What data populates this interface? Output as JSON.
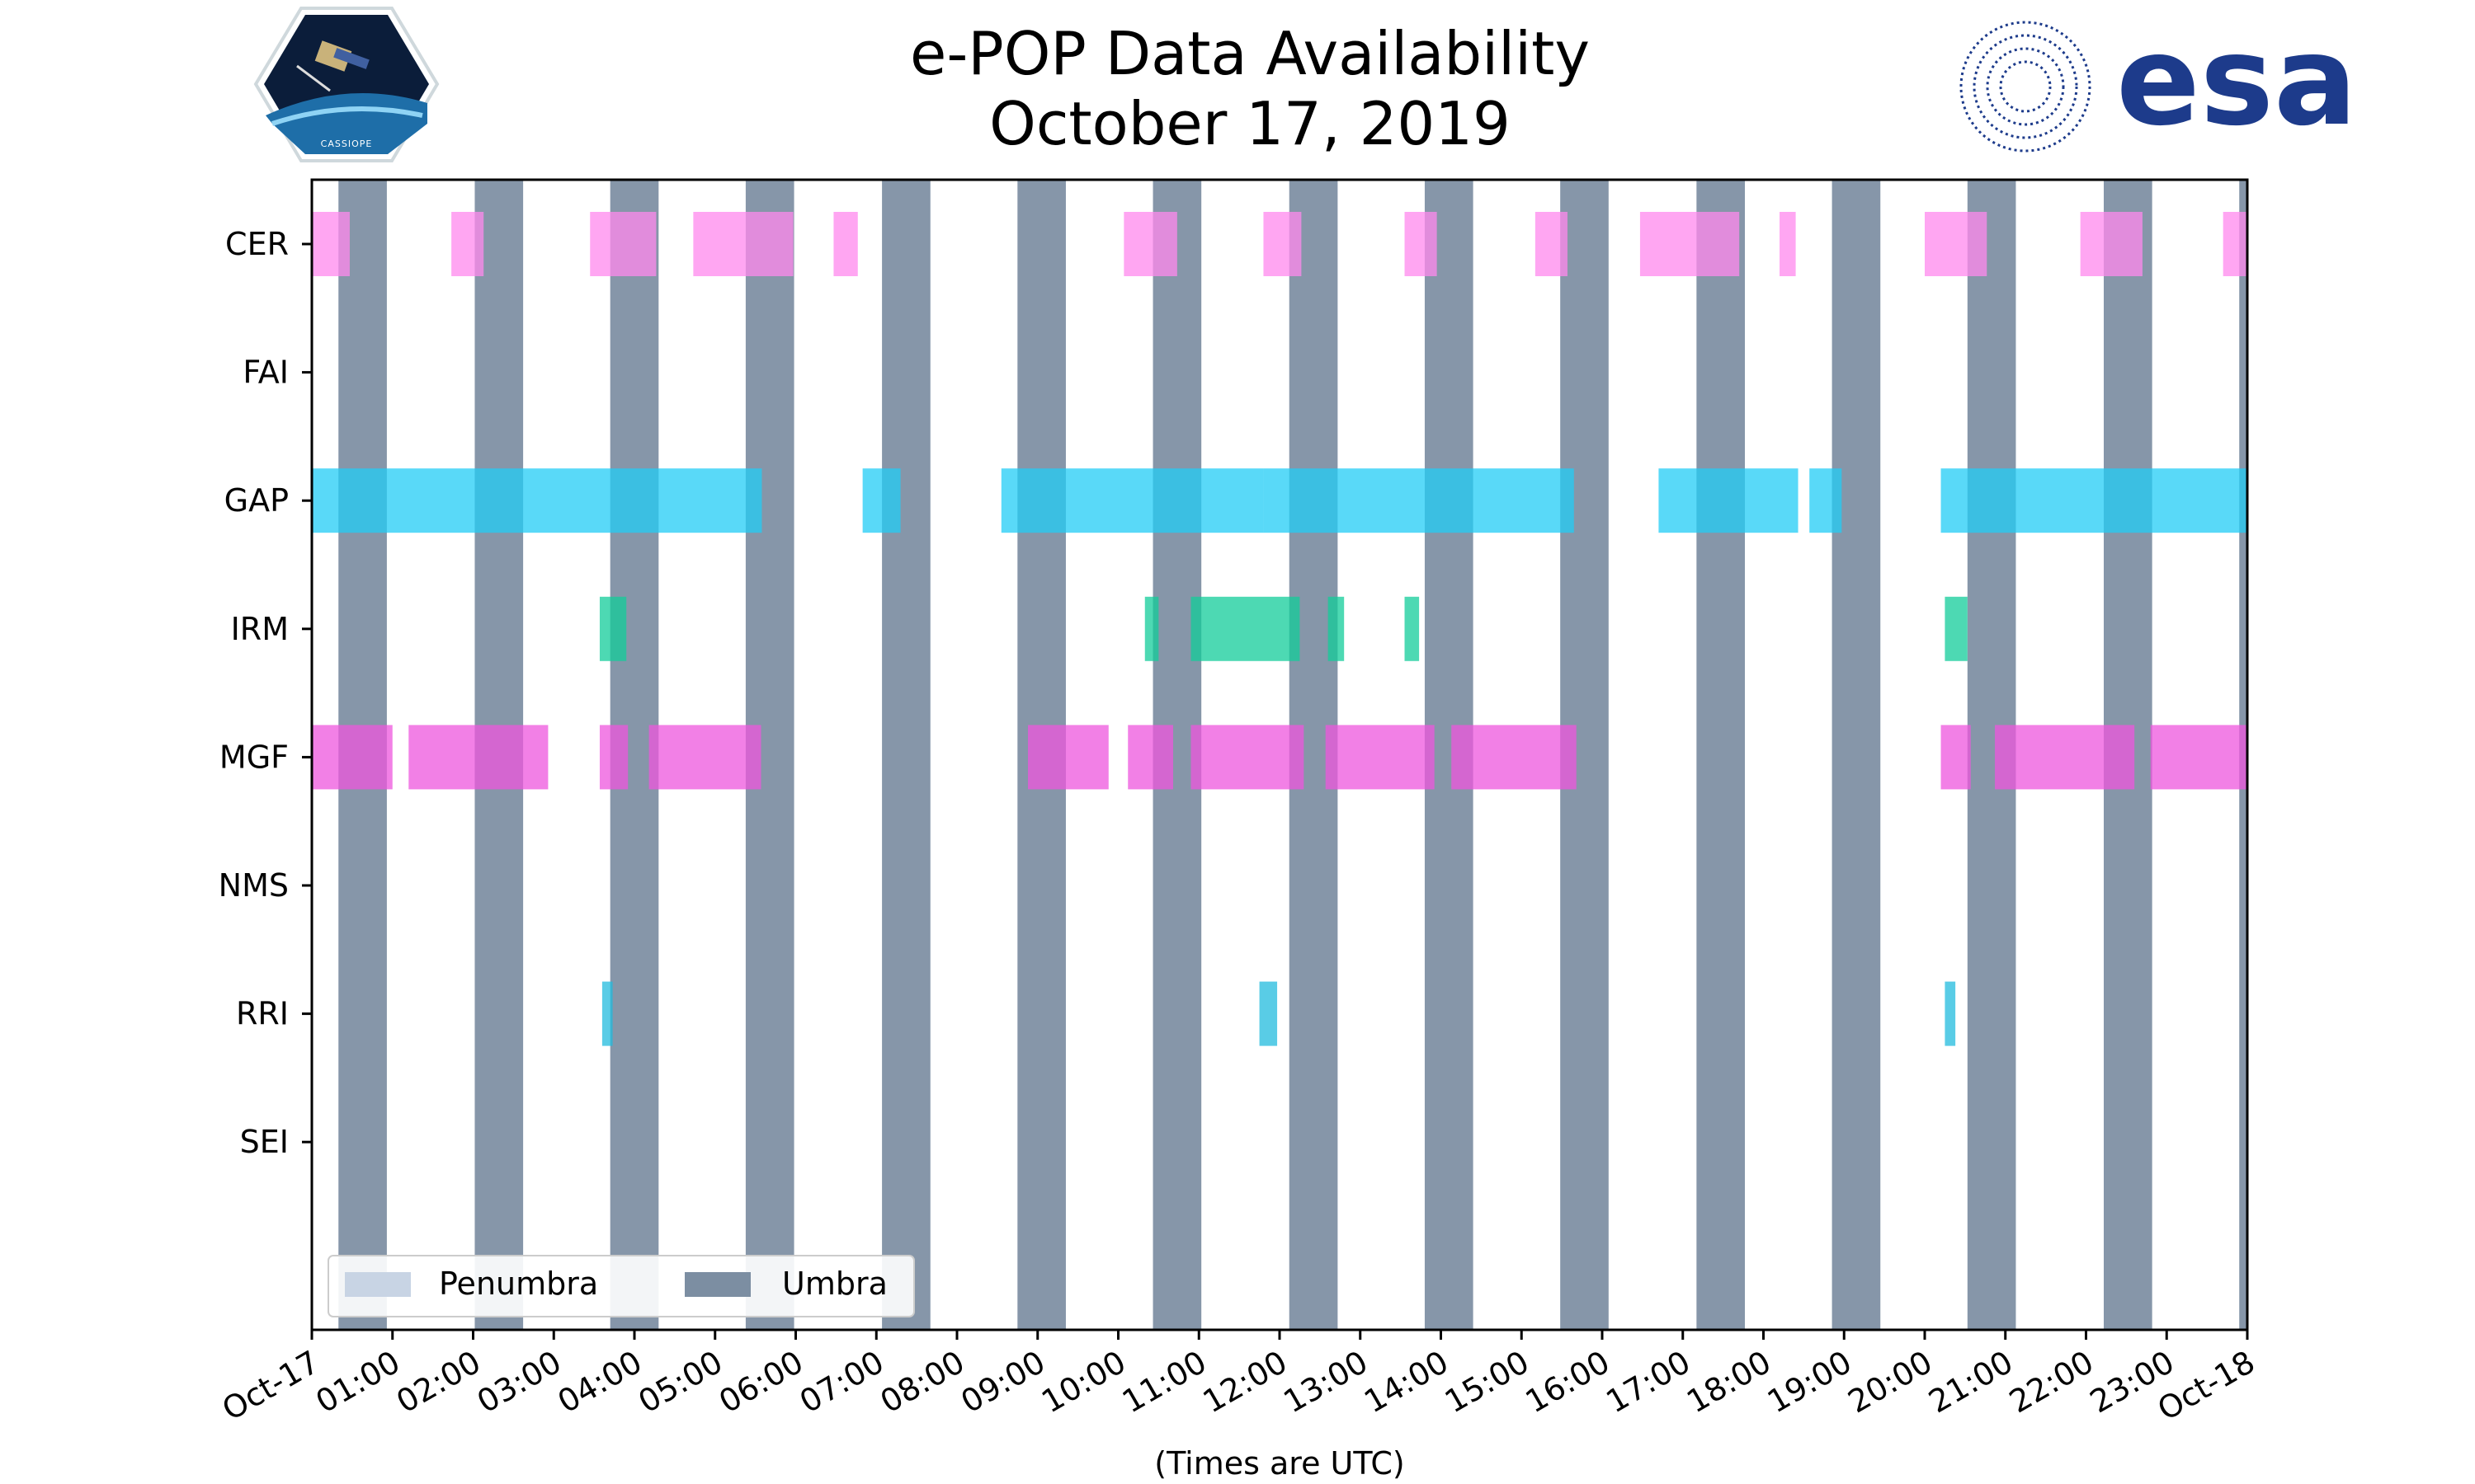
{
  "chart_data": {
    "type": "timeline",
    "title": [
      "e-POP Data Availability",
      "October 17, 2019"
    ],
    "xlabel": "(Times are UTC)",
    "x_range_hours": [
      0,
      24
    ],
    "x_tick_labels": [
      "Oct-17",
      "01:00",
      "02:00",
      "03:00",
      "04:00",
      "05:00",
      "06:00",
      "07:00",
      "08:00",
      "09:00",
      "10:00",
      "11:00",
      "12:00",
      "13:00",
      "14:00",
      "15:00",
      "16:00",
      "17:00",
      "18:00",
      "19:00",
      "20:00",
      "21:00",
      "22:00",
      "23:00",
      "Oct-18"
    ],
    "instruments": [
      "CER",
      "FAI",
      "GAP",
      "IRM",
      "MGF",
      "NMS",
      "RRI",
      "SEI"
    ],
    "series": [
      {
        "name": "CER",
        "color": "#ff88ee",
        "intervals": [
          [
            0.0,
            0.47
          ],
          [
            1.73,
            2.13
          ],
          [
            3.45,
            4.27
          ],
          [
            4.73,
            5.97
          ],
          [
            6.47,
            6.77
          ],
          [
            10.07,
            10.73
          ],
          [
            11.8,
            12.27
          ],
          [
            13.55,
            13.95
          ],
          [
            15.17,
            15.57
          ],
          [
            16.47,
            17.7
          ],
          [
            18.2,
            18.4
          ],
          [
            20.0,
            20.77
          ],
          [
            21.93,
            22.7
          ],
          [
            23.7,
            24.0
          ]
        ]
      },
      {
        "name": "FAI",
        "color": "#ff88ee",
        "intervals": []
      },
      {
        "name": "GAP",
        "color": "#22ccf5",
        "intervals": [
          [
            0.0,
            5.58
          ],
          [
            6.83,
            7.3
          ],
          [
            8.55,
            11.8
          ],
          [
            11.8,
            15.65
          ],
          [
            16.7,
            18.43
          ],
          [
            18.57,
            18.97
          ],
          [
            20.2,
            24.0
          ]
        ]
      },
      {
        "name": "IRM",
        "color": "#11cc99",
        "intervals": [
          [
            3.57,
            3.9
          ],
          [
            10.33,
            10.5
          ],
          [
            10.9,
            12.25
          ],
          [
            12.6,
            12.8
          ],
          [
            13.55,
            13.73
          ],
          [
            20.25,
            20.53
          ]
        ]
      },
      {
        "name": "MGF",
        "color": "#ee55dd",
        "intervals": [
          [
            0.0,
            1.0
          ],
          [
            1.2,
            2.93
          ],
          [
            3.57,
            3.92
          ],
          [
            4.18,
            5.57
          ],
          [
            8.88,
            9.88
          ],
          [
            10.12,
            10.68
          ],
          [
            10.9,
            12.3
          ],
          [
            12.57,
            13.92
          ],
          [
            14.13,
            15.68
          ],
          [
            20.2,
            20.57
          ],
          [
            20.87,
            22.6
          ],
          [
            22.8,
            24.0
          ]
        ]
      },
      {
        "name": "NMS",
        "color": "#ff88ee",
        "intervals": []
      },
      {
        "name": "RRI",
        "color": "#22bbdd",
        "intervals": [
          [
            3.6,
            3.73
          ],
          [
            11.75,
            11.97
          ],
          [
            20.25,
            20.38
          ]
        ]
      },
      {
        "name": "SEI",
        "color": "#ff88ee",
        "intervals": []
      }
    ],
    "umbra_intervals": [
      [
        0.33,
        0.93
      ],
      [
        2.02,
        2.62
      ],
      [
        3.7,
        4.3
      ],
      [
        5.38,
        5.98
      ],
      [
        7.07,
        7.67
      ],
      [
        8.75,
        9.35
      ],
      [
        10.43,
        11.03
      ],
      [
        12.12,
        12.72
      ],
      [
        13.8,
        14.4
      ],
      [
        15.48,
        16.08
      ],
      [
        17.17,
        17.77
      ],
      [
        18.85,
        19.45
      ],
      [
        20.53,
        21.13
      ],
      [
        22.22,
        22.82
      ],
      [
        23.9,
        24.0
      ]
    ],
    "legend": {
      "position": "lower-left",
      "entries": [
        {
          "label": "Penumbra",
          "color": "#c8d4e4"
        },
        {
          "label": "Umbra",
          "color": "#7c8ea2"
        }
      ]
    },
    "umbra_color": "#6b7f96",
    "penumbra_color": "#c8d4e4"
  },
  "logos": {
    "left_badge": {
      "text": "CASSIOPE"
    },
    "right_logo": {
      "text": "esa",
      "color": "#1d3b8b"
    }
  }
}
